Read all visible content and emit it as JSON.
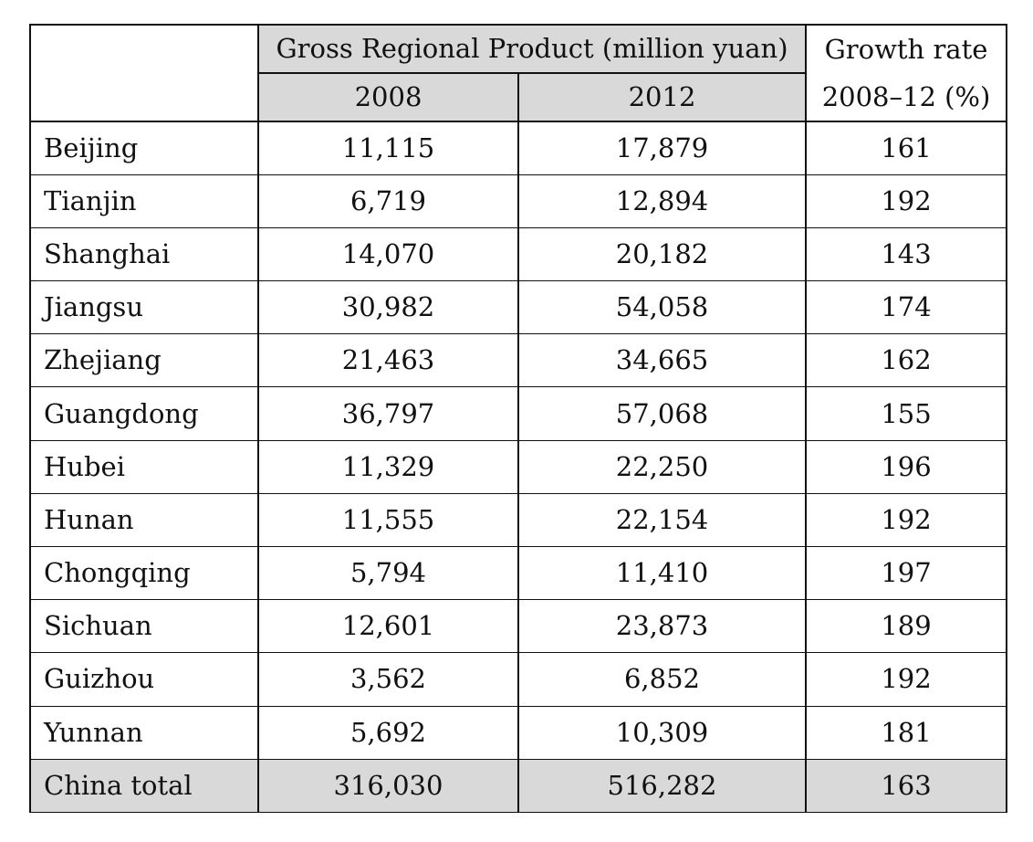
{
  "chart_data": {
    "type": "table",
    "header": {
      "corner": "",
      "group_label": "Gross Regional Product (million yuan)",
      "year_columns": [
        "2008",
        "2012"
      ],
      "growth_label_line1": "Growth rate",
      "growth_label_line2": "2008–12 (%)"
    },
    "rows": [
      {
        "region": "Beijing",
        "gdp_2008": "11,115",
        "gdp_2012": "17,879",
        "growth": "161"
      },
      {
        "region": "Tianjin",
        "gdp_2008": "6,719",
        "gdp_2012": "12,894",
        "growth": "192"
      },
      {
        "region": "Shanghai",
        "gdp_2008": "14,070",
        "gdp_2012": "20,182",
        "growth": "143"
      },
      {
        "region": "Jiangsu",
        "gdp_2008": "30,982",
        "gdp_2012": "54,058",
        "growth": "174"
      },
      {
        "region": "Zhejiang",
        "gdp_2008": "21,463",
        "gdp_2012": "34,665",
        "growth": "162"
      },
      {
        "region": "Guangdong",
        "gdp_2008": "36,797",
        "gdp_2012": "57,068",
        "growth": "155"
      },
      {
        "region": "Hubei",
        "gdp_2008": "11,329",
        "gdp_2012": "22,250",
        "growth": "196"
      },
      {
        "region": "Hunan",
        "gdp_2008": "11,555",
        "gdp_2012": "22,154",
        "growth": "192"
      },
      {
        "region": "Chongqing",
        "gdp_2008": "5,794",
        "gdp_2012": "11,410",
        "growth": "197"
      },
      {
        "region": "Sichuan",
        "gdp_2008": "12,601",
        "gdp_2012": "23,873",
        "growth": "189"
      },
      {
        "region": "Guizhou",
        "gdp_2008": "3,562",
        "gdp_2012": "6,852",
        "growth": "192"
      },
      {
        "region": "Yunnan",
        "gdp_2008": "5,692",
        "gdp_2012": "10,309",
        "growth": "181"
      }
    ],
    "total": {
      "region": "China total",
      "gdp_2008": "316,030",
      "gdp_2012": "516,282",
      "growth": "163"
    },
    "shaded_color": "#d9d9d9",
    "border_color": "#111111"
  }
}
